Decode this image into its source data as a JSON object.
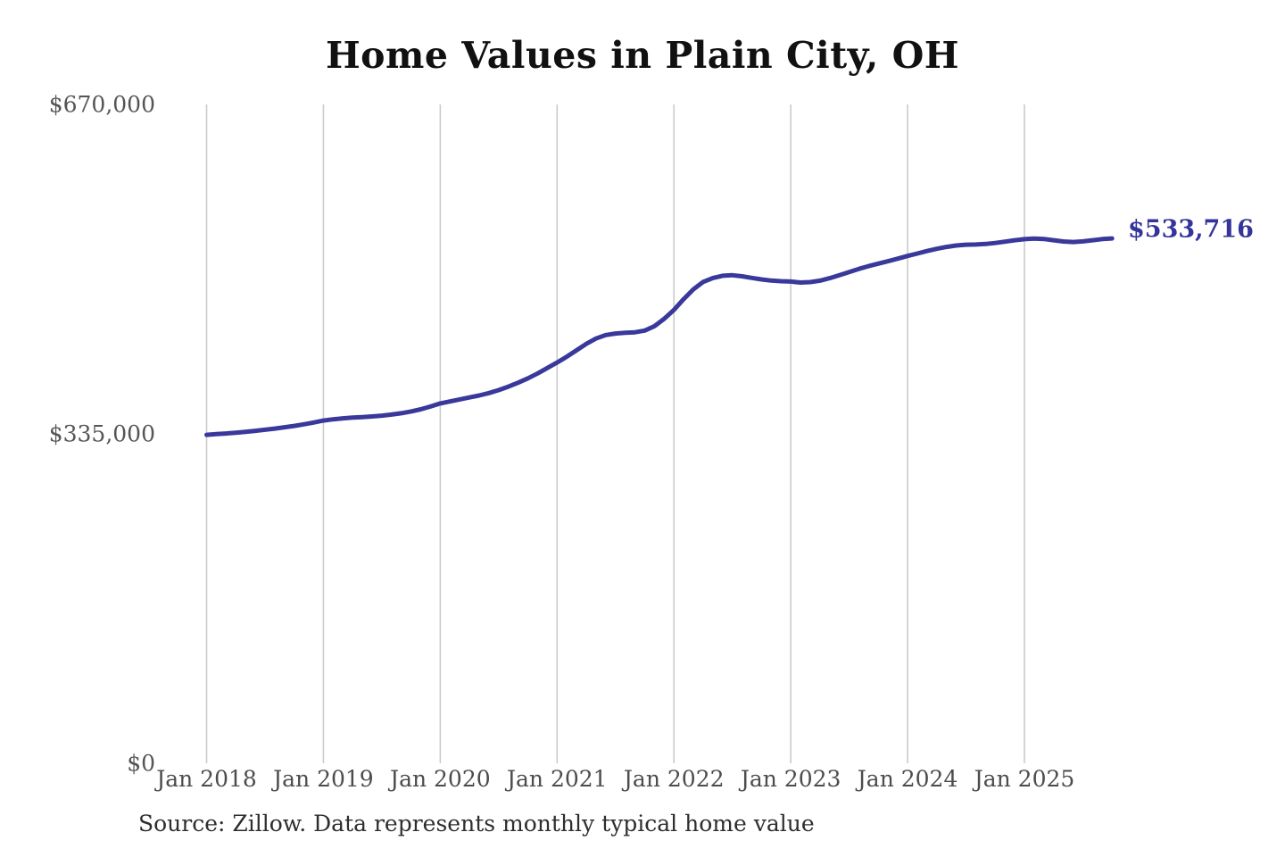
{
  "title": "Home Values in Plain City, OH",
  "source_note": "Source: Zillow. Data represents monthly typical home value",
  "end_label": "$533,716",
  "colors": {
    "line": "#39389b",
    "end_label": "#34349b",
    "gridline": "#cbcbcb",
    "title": "#111111",
    "axis_label": "#555555",
    "source": "#2e2e2e",
    "background": "#ffffff"
  },
  "chart_data": {
    "type": "line",
    "title": "Home Values in Plain City, OH",
    "series_name": "Monthly typical home value",
    "xlabel": "",
    "ylabel": "",
    "ylim": [
      0,
      670000
    ],
    "y_ticks": [
      0,
      335000,
      670000
    ],
    "y_tick_labels": [
      "$0",
      "$335,000",
      "$670,000"
    ],
    "x_tick_labels": [
      "Jan 2018",
      "Jan 2019",
      "Jan 2020",
      "Jan 2021",
      "Jan 2022",
      "Jan 2023",
      "Jan 2024",
      "Jan 2025"
    ],
    "grid": "vertical-only",
    "legend": "none",
    "last_point_label": "$533,716",
    "x": [
      "2018-01",
      "2018-02",
      "2018-03",
      "2018-04",
      "2018-05",
      "2018-06",
      "2018-07",
      "2018-08",
      "2018-09",
      "2018-10",
      "2018-11",
      "2018-12",
      "2019-01",
      "2019-02",
      "2019-03",
      "2019-04",
      "2019-05",
      "2019-06",
      "2019-07",
      "2019-08",
      "2019-09",
      "2019-10",
      "2019-11",
      "2019-12",
      "2020-01",
      "2020-02",
      "2020-03",
      "2020-04",
      "2020-05",
      "2020-06",
      "2020-07",
      "2020-08",
      "2020-09",
      "2020-10",
      "2020-11",
      "2020-12",
      "2021-01",
      "2021-02",
      "2021-03",
      "2021-04",
      "2021-05",
      "2021-06",
      "2021-07",
      "2021-08",
      "2021-09",
      "2021-10",
      "2021-11",
      "2021-12",
      "2022-01",
      "2022-02",
      "2022-03",
      "2022-04",
      "2022-05",
      "2022-06",
      "2022-07",
      "2022-08",
      "2022-09",
      "2022-10",
      "2022-11",
      "2022-12",
      "2023-01",
      "2023-02",
      "2023-03",
      "2023-04",
      "2023-05",
      "2023-06",
      "2023-07",
      "2023-08",
      "2023-09",
      "2023-10",
      "2023-11",
      "2023-12",
      "2024-01",
      "2024-02",
      "2024-03",
      "2024-04",
      "2024-05",
      "2024-06",
      "2024-07",
      "2024-08",
      "2024-09",
      "2024-10",
      "2024-11",
      "2024-12",
      "2025-01",
      "2025-02",
      "2025-03",
      "2025-04",
      "2025-05",
      "2025-06",
      "2025-07",
      "2025-08",
      "2025-09",
      "2025-10"
    ],
    "values": [
      334000,
      334700,
      335400,
      336200,
      337100,
      338100,
      339200,
      340400,
      341700,
      343100,
      344700,
      346500,
      348500,
      349800,
      350800,
      351500,
      352100,
      352700,
      353500,
      354600,
      356000,
      357800,
      360000,
      362800,
      366000,
      368000,
      370000,
      372000,
      374000,
      376500,
      379500,
      383000,
      387000,
      391500,
      396500,
      402000,
      407500,
      413500,
      420000,
      426500,
      432000,
      435500,
      437000,
      437800,
      438300,
      440000,
      444500,
      452000,
      461000,
      472000,
      482000,
      489500,
      493500,
      495800,
      496300,
      495200,
      493600,
      492100,
      490900,
      490200,
      489900,
      488900,
      489300,
      490800,
      493300,
      496400,
      499600,
      502800,
      505600,
      508100,
      510600,
      513200,
      515900,
      518400,
      520900,
      523200,
      525100,
      526600,
      527400,
      527600,
      528100,
      529100,
      530500,
      531900,
      533000,
      533600,
      533200,
      531900,
      530600,
      530100,
      530700,
      531900,
      533100,
      533716
    ]
  }
}
